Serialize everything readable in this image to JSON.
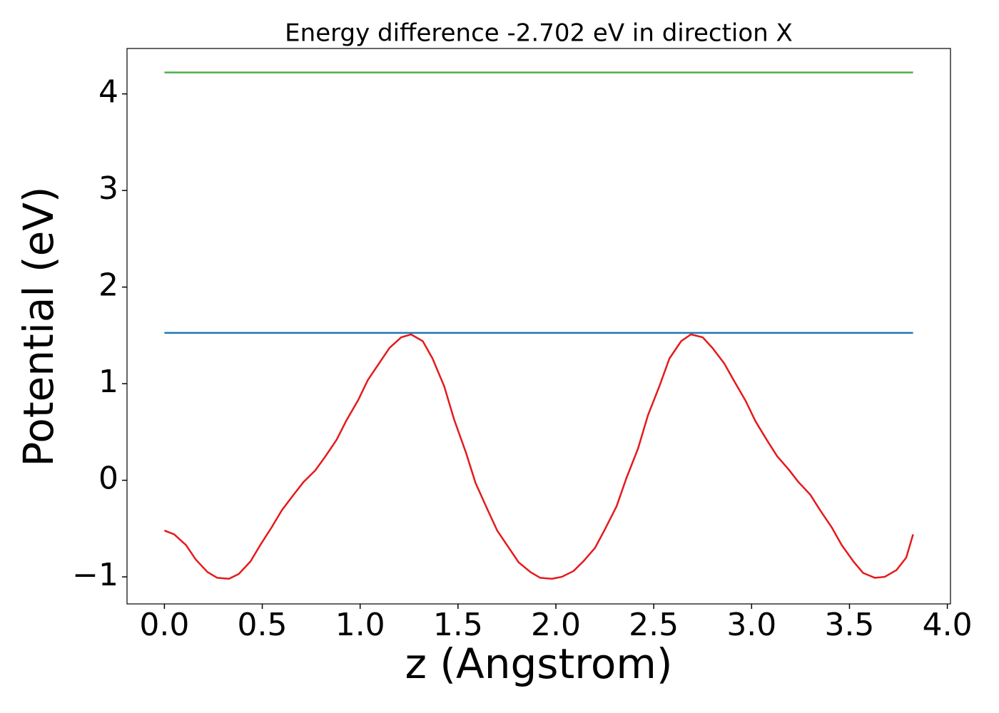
{
  "chart_data": {
    "type": "line",
    "title": "Energy difference -2.702 eV in direction X",
    "xlabel": "z (Angstrom)",
    "ylabel": "Potential (eV)",
    "xlim": [
      -0.191,
      4.016
    ],
    "ylim": [
      -1.28,
      4.47
    ],
    "xticks": [
      {
        "value": 0,
        "label": "0.0"
      },
      {
        "value": 0.5,
        "label": "0.5"
      },
      {
        "value": 1,
        "label": "1.0"
      },
      {
        "value": 1.5,
        "label": "1.5"
      },
      {
        "value": 2,
        "label": "2.0"
      },
      {
        "value": 2.5,
        "label": "2.5"
      },
      {
        "value": 3,
        "label": "3.0"
      },
      {
        "value": 3.5,
        "label": "3.5"
      },
      {
        "value": 4,
        "label": "4.0"
      }
    ],
    "yticks": [
      {
        "value": -1,
        "label": "−1"
      },
      0,
      1,
      2,
      3,
      4
    ],
    "grid": false,
    "series": [
      {
        "color": "#e41a1c",
        "x": [
          0,
          0.05,
          0.11,
          0.16,
          0.22,
          0.27,
          0.33,
          0.38,
          0.44,
          0.49,
          0.55,
          0.6,
          0.66,
          0.71,
          0.77,
          0.82,
          0.88,
          0.93,
          0.99,
          1.04,
          1.1,
          1.15,
          1.21,
          1.26,
          1.32,
          1.37,
          1.43,
          1.48,
          1.54,
          1.59,
          1.65,
          1.7,
          1.76,
          1.81,
          1.87,
          1.92,
          1.98,
          2.03,
          2.09,
          2.14,
          2.2,
          2.25,
          2.31,
          2.36,
          2.42,
          2.47,
          2.53,
          2.58,
          2.64,
          2.69,
          2.75,
          2.8,
          2.86,
          2.91,
          2.97,
          3.02,
          3.08,
          3.13,
          3.19,
          3.24,
          3.3,
          3.35,
          3.41,
          3.46,
          3.52,
          3.57,
          3.63,
          3.68,
          3.74,
          3.79,
          3.825
        ],
        "values": [
          -0.52,
          -0.56,
          -0.67,
          -0.82,
          -0.95,
          -1.01,
          -1.02,
          -0.97,
          -0.84,
          -0.67,
          -0.48,
          -0.31,
          -0.15,
          -0.02,
          0.1,
          0.24,
          0.42,
          0.62,
          0.83,
          1.04,
          1.22,
          1.37,
          1.48,
          1.51,
          1.44,
          1.26,
          0.97,
          0.63,
          0.29,
          -0.03,
          -0.3,
          -0.52,
          -0.7,
          -0.85,
          -0.95,
          -1.01,
          -1.02,
          -1.0,
          -0.94,
          -0.84,
          -0.7,
          -0.51,
          -0.27,
          0.02,
          0.33,
          0.67,
          0.98,
          1.26,
          1.44,
          1.51,
          1.48,
          1.37,
          1.21,
          1.03,
          0.82,
          0.61,
          0.41,
          0.25,
          0.11,
          -0.02,
          -0.15,
          -0.31,
          -0.49,
          -0.67,
          -0.84,
          -0.96,
          -1.01,
          -1.0,
          -0.93,
          -0.8,
          -0.56
        ]
      },
      {
        "color": "#1f77b4",
        "x": [
          0,
          3.825
        ],
        "values": [
          1.526,
          1.526
        ]
      },
      {
        "color": "#4daf4a",
        "x": [
          0,
          3.825
        ],
        "values": [
          4.222,
          4.222
        ]
      }
    ]
  }
}
